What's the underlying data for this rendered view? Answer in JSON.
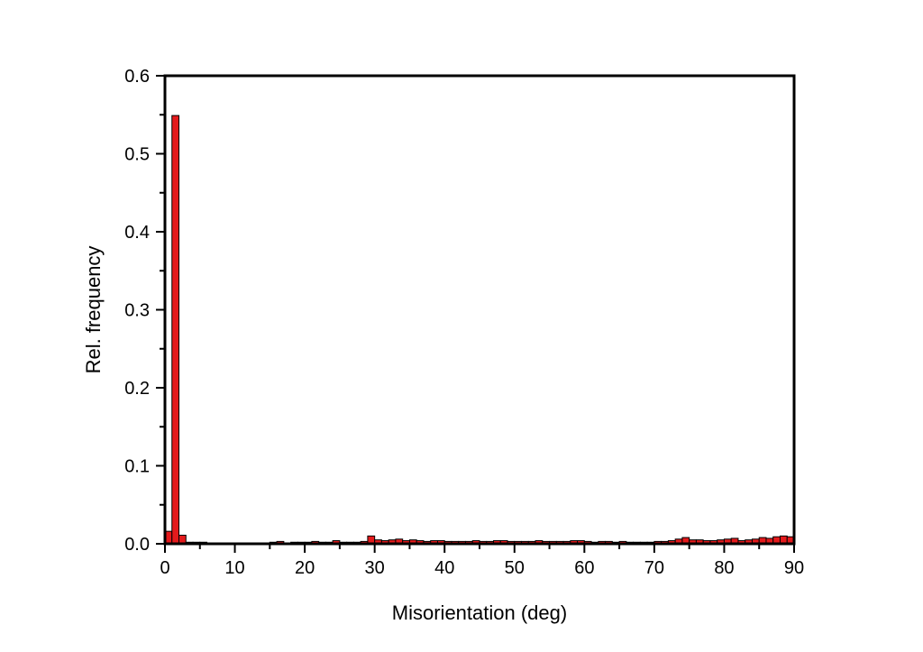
{
  "chart_data": {
    "type": "bar",
    "title": "",
    "xlabel": "Misorientation (deg)",
    "ylabel": "Rel. frequency",
    "xlim": [
      0,
      90
    ],
    "ylim": [
      0,
      0.6
    ],
    "bin_width": 1,
    "bar_color": "#e41a1c",
    "bar_edge_color": "#000000",
    "x_ticks": [
      0,
      10,
      20,
      30,
      40,
      50,
      60,
      70,
      80,
      90
    ],
    "x_tick_labels": [
      "0",
      "10",
      "20",
      "30",
      "40",
      "50",
      "60",
      "70",
      "80",
      "90"
    ],
    "y_ticks": [
      0,
      0.1,
      0.2,
      0.3,
      0.4,
      0.5,
      0.6
    ],
    "y_tick_labels": [
      "0.0",
      "0.1",
      "0.2",
      "0.3",
      "0.4",
      "0.5",
      "0.6"
    ],
    "grid": false,
    "legend": "none",
    "series": [
      {
        "bin_starts": [
          0,
          1,
          2,
          3,
          4,
          5,
          6,
          7,
          8,
          9,
          10,
          11,
          12,
          13,
          14,
          15,
          16,
          17,
          18,
          19,
          20,
          21,
          22,
          23,
          24,
          25,
          26,
          27,
          28,
          29,
          30,
          31,
          32,
          33,
          34,
          35,
          36,
          37,
          38,
          39,
          40,
          41,
          42,
          43,
          44,
          45,
          46,
          47,
          48,
          49,
          50,
          51,
          52,
          53,
          54,
          55,
          56,
          57,
          58,
          59,
          60,
          61,
          62,
          63,
          64,
          65,
          66,
          67,
          68,
          69,
          70,
          71,
          72,
          73,
          74,
          75,
          76,
          77,
          78,
          79,
          80,
          81,
          82,
          83,
          84,
          85,
          86,
          87,
          88,
          89
        ],
        "values": [
          0.016,
          0.549,
          0.011,
          0.002,
          0.002,
          0.002,
          0.001,
          0.001,
          0.001,
          0.001,
          0.001,
          0.001,
          0.001,
          0.001,
          0.001,
          0.002,
          0.003,
          0.001,
          0.002,
          0.002,
          0.002,
          0.003,
          0.002,
          0.002,
          0.004,
          0.002,
          0.002,
          0.002,
          0.003,
          0.01,
          0.005,
          0.004,
          0.005,
          0.006,
          0.004,
          0.005,
          0.004,
          0.003,
          0.004,
          0.004,
          0.003,
          0.003,
          0.003,
          0.003,
          0.004,
          0.003,
          0.003,
          0.004,
          0.004,
          0.003,
          0.003,
          0.003,
          0.003,
          0.004,
          0.003,
          0.003,
          0.003,
          0.003,
          0.004,
          0.004,
          0.003,
          0.002,
          0.003,
          0.003,
          0.002,
          0.003,
          0.002,
          0.002,
          0.002,
          0.002,
          0.003,
          0.003,
          0.004,
          0.006,
          0.008,
          0.005,
          0.005,
          0.004,
          0.004,
          0.005,
          0.006,
          0.007,
          0.004,
          0.005,
          0.006,
          0.008,
          0.007,
          0.009,
          0.01,
          0.009
        ]
      }
    ]
  }
}
